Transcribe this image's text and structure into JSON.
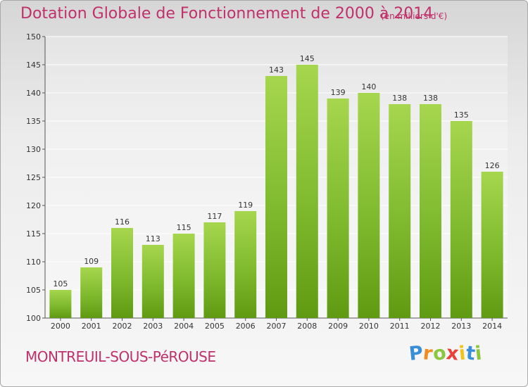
{
  "chart_data": {
    "type": "bar",
    "title": "Dotation Globale de Fonctionnement de 2000 à 2014",
    "subtitle": "(en milliers d'€)",
    "categories": [
      "2000",
      "2001",
      "2002",
      "2003",
      "2004",
      "2005",
      "2006",
      "2007",
      "2008",
      "2009",
      "2010",
      "2011",
      "2012",
      "2013",
      "2014"
    ],
    "values": [
      105,
      109,
      116,
      113,
      115,
      117,
      119,
      143,
      145,
      139,
      140,
      138,
      138,
      135,
      126
    ],
    "data_labels": [
      "105",
      "109",
      "116",
      "113",
      "115",
      "117",
      "119",
      "143",
      "145",
      "139",
      "140",
      "138",
      "138",
      "135",
      "126"
    ],
    "ylim": [
      100,
      150
    ],
    "yticks": [
      "100",
      "105",
      "110",
      "115",
      "120",
      "125",
      "130",
      "135",
      "140",
      "145",
      "150"
    ],
    "xlabel": "",
    "ylabel": "",
    "grid": true,
    "bar_color": "#7fba2e",
    "bar_color_light": "#a6d64e",
    "bar_color_dark": "#5f9a12"
  },
  "footer": {
    "town": "MONTREUIL-SOUS-PéROUSE",
    "logo_letters": [
      "P",
      "r",
      "o",
      "x",
      "i",
      "t",
      "i"
    ],
    "logo_colors": [
      "#3a8ed8",
      "#f08c1e",
      "#8cc63f",
      "#e8413c",
      "#f0c419",
      "#3a8ed8",
      "#8cc63f"
    ]
  },
  "colors": {
    "accent": "#c0306a",
    "axis": "#555555",
    "grid": "#ffffff"
  }
}
